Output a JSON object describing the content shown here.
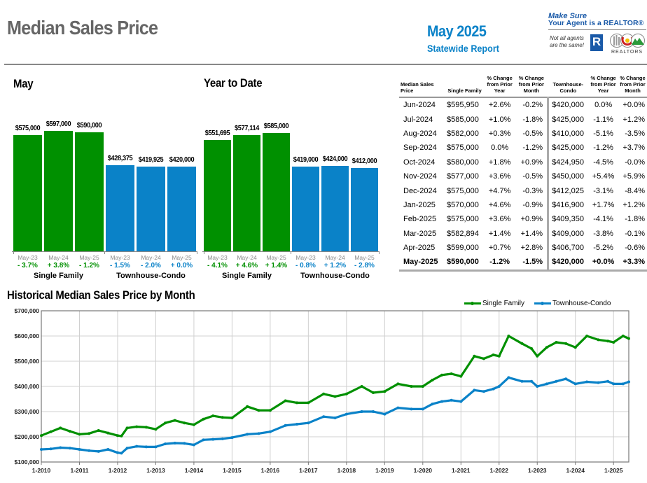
{
  "header": {
    "title": "Median Sales Price",
    "report_date": "May 2025",
    "report_subtitle": "Statewide Report",
    "logo": {
      "line1": "Make Sure",
      "line2": "Your Agent is a REALTOR®",
      "tagline_1": "Not all agents",
      "tagline_2": "are the same!",
      "realtor_mark": "R",
      "association": "REALTORS"
    }
  },
  "colors": {
    "single_family": "#009000",
    "townhouse_condo": "#0a82c8",
    "title_gray": "#666666",
    "accent_blue": "#0a82c8",
    "grid": "#d0d0d0"
  },
  "chart_data": [
    {
      "type": "bar",
      "title": "May",
      "groups": [
        "Single Family",
        "Townhouse-Condo"
      ],
      "categories": [
        "May-23",
        "May-24",
        "May-25"
      ],
      "series": [
        {
          "name": "Single Family",
          "values": [
            575000,
            597000,
            590000
          ],
          "labels": [
            "$575,000",
            "$597,000",
            "$590,000"
          ],
          "pct_change": [
            "- 3.7%",
            "+ 3.8%",
            "- 1.2%"
          ]
        },
        {
          "name": "Townhouse-Condo",
          "values": [
            428375,
            419925,
            420000
          ],
          "labels": [
            "$428,375",
            "$419,925",
            "$420,000"
          ],
          "pct_change": [
            "- 1.5%",
            "- 2.0%",
            "+ 0.0%"
          ]
        }
      ],
      "ylim": [
        0,
        600000
      ]
    },
    {
      "type": "bar",
      "title": "Year to Date",
      "groups": [
        "Single Family",
        "Townhouse-Condo"
      ],
      "categories": [
        "May-23",
        "May-24",
        "May-25"
      ],
      "series": [
        {
          "name": "Single Family",
          "values": [
            551695,
            577114,
            585000
          ],
          "labels": [
            "$551,695",
            "$577,114",
            "$585,000"
          ],
          "pct_change": [
            "- 4.1%",
            "+ 4.6%",
            "+ 1.4%"
          ]
        },
        {
          "name": "Townhouse-Condo",
          "values": [
            419000,
            424000,
            412000
          ],
          "labels": [
            "$419,000",
            "$424,000",
            "$412,000"
          ],
          "pct_change": [
            "- 0.8%",
            "+ 1.2%",
            "- 2.8%"
          ]
        }
      ],
      "ylim": [
        0,
        600000
      ]
    },
    {
      "type": "table",
      "columns": [
        "Median Sales Price",
        "Single Family",
        "% Change from Prior Year",
        "% Change from Prior Month",
        "Townhouse-Condo",
        "% Change from Prior Year",
        "% Change from Prior Month"
      ],
      "rows": [
        [
          "Jun-2024",
          "$595,950",
          "+2.6%",
          "-0.2%",
          "$420,000",
          "0.0%",
          "+0.0%"
        ],
        [
          "Jul-2024",
          "$585,000",
          "+1.0%",
          "-1.8%",
          "$425,000",
          "-1.1%",
          "+1.2%"
        ],
        [
          "Aug-2024",
          "$582,000",
          "+0.3%",
          "-0.5%",
          "$410,000",
          "-5.1%",
          "-3.5%"
        ],
        [
          "Sep-2024",
          "$575,000",
          "0.0%",
          "-1.2%",
          "$425,000",
          "-1.2%",
          "+3.7%"
        ],
        [
          "Oct-2024",
          "$580,000",
          "+1.8%",
          "+0.9%",
          "$424,950",
          "-4.5%",
          "-0.0%"
        ],
        [
          "Nov-2024",
          "$577,000",
          "+3.6%",
          "-0.5%",
          "$450,000",
          "+5.4%",
          "+5.9%"
        ],
        [
          "Dec-2024",
          "$575,000",
          "+4.7%",
          "-0.3%",
          "$412,025",
          "-3.1%",
          "-8.4%"
        ],
        [
          "Jan-2025",
          "$570,000",
          "+4.6%",
          "-0.9%",
          "$416,900",
          "+1.7%",
          "+1.2%"
        ],
        [
          "Feb-2025",
          "$575,000",
          "+3.6%",
          "+0.9%",
          "$409,350",
          "-4.1%",
          "-1.8%"
        ],
        [
          "Mar-2025",
          "$582,894",
          "+1.4%",
          "+1.4%",
          "$409,000",
          "-3.8%",
          "-0.1%"
        ],
        [
          "Apr-2025",
          "$599,000",
          "+0.7%",
          "+2.8%",
          "$406,700",
          "-5.2%",
          "-0.6%"
        ],
        [
          "May-2025",
          "$590,000",
          "-1.2%",
          "-1.5%",
          "$420,000",
          "+0.0%",
          "+3.3%"
        ]
      ],
      "bold_last_row": true
    },
    {
      "type": "line",
      "title": "Historical Median Sales Price by Month",
      "legend": [
        "Single Family",
        "Townhouse-Condo"
      ],
      "legend_position": "top-right",
      "xlabel": "",
      "ylabel": "",
      "x_ticks": [
        "1-2010",
        "1-2011",
        "1-2012",
        "1-2013",
        "1-2014",
        "1-2015",
        "1-2016",
        "1-2017",
        "1-2018",
        "1-2019",
        "1-2020",
        "1-2021",
        "1-2022",
        "1-2023",
        "1-2024",
        "1-2025"
      ],
      "y_ticks": [
        "$100,000",
        "$200,000",
        "$300,000",
        "$400,000",
        "$500,000",
        "$600,000",
        "$700,000"
      ],
      "ylim": [
        100000,
        700000
      ],
      "xlim": [
        2010.0,
        2025.4
      ],
      "grid": true,
      "series": [
        {
          "name": "Single Family",
          "x": [
            2010.0,
            2010.25,
            2010.5,
            2010.75,
            2011.0,
            2011.25,
            2011.5,
            2011.75,
            2012.0,
            2012.1,
            2012.25,
            2012.5,
            2012.75,
            2013.0,
            2013.25,
            2013.5,
            2013.75,
            2014.0,
            2014.25,
            2014.5,
            2014.75,
            2015.0,
            2015.4,
            2015.7,
            2016.0,
            2016.4,
            2016.7,
            2017.0,
            2017.4,
            2017.7,
            2018.0,
            2018.4,
            2018.7,
            2019.0,
            2019.35,
            2019.7,
            2020.0,
            2020.25,
            2020.5,
            2020.75,
            2021.0,
            2021.35,
            2021.6,
            2021.85,
            2022.0,
            2022.25,
            2022.6,
            2022.85,
            2023.0,
            2023.25,
            2023.5,
            2023.75,
            2024.0,
            2024.3,
            2024.6,
            2024.85,
            2025.0,
            2025.25,
            2025.4
          ],
          "y": [
            205000,
            220000,
            235000,
            222000,
            210000,
            213000,
            225000,
            215000,
            205000,
            203000,
            235000,
            240000,
            238000,
            230000,
            255000,
            265000,
            255000,
            248000,
            270000,
            283000,
            277000,
            275000,
            320000,
            305000,
            305000,
            343000,
            335000,
            335000,
            370000,
            360000,
            370000,
            400000,
            375000,
            380000,
            410000,
            400000,
            400000,
            425000,
            445000,
            450000,
            440000,
            520000,
            510000,
            525000,
            520000,
            600000,
            570000,
            550000,
            520000,
            555000,
            575000,
            570000,
            555000,
            600000,
            585000,
            580000,
            575000,
            600000,
            590000
          ]
        },
        {
          "name": "Townhouse-Condo",
          "x": [
            2010.0,
            2010.25,
            2010.5,
            2010.75,
            2011.0,
            2011.25,
            2011.5,
            2011.75,
            2012.0,
            2012.1,
            2012.25,
            2012.5,
            2012.75,
            2013.0,
            2013.25,
            2013.5,
            2013.75,
            2014.0,
            2014.25,
            2014.5,
            2014.75,
            2015.0,
            2015.4,
            2015.7,
            2016.0,
            2016.4,
            2016.7,
            2017.0,
            2017.4,
            2017.7,
            2018.0,
            2018.4,
            2018.7,
            2019.0,
            2019.35,
            2019.7,
            2020.0,
            2020.25,
            2020.5,
            2020.75,
            2021.0,
            2021.35,
            2021.6,
            2021.85,
            2022.0,
            2022.25,
            2022.6,
            2022.85,
            2023.0,
            2023.25,
            2023.5,
            2023.75,
            2024.0,
            2024.3,
            2024.6,
            2024.85,
            2025.0,
            2025.25,
            2025.4
          ],
          "y": [
            150000,
            152000,
            157000,
            155000,
            150000,
            145000,
            142000,
            150000,
            137000,
            135000,
            155000,
            162000,
            160000,
            160000,
            172000,
            175000,
            174000,
            168000,
            188000,
            190000,
            192000,
            197000,
            210000,
            213000,
            220000,
            245000,
            250000,
            255000,
            280000,
            275000,
            290000,
            300000,
            300000,
            290000,
            315000,
            310000,
            310000,
            330000,
            340000,
            345000,
            340000,
            385000,
            380000,
            390000,
            400000,
            435000,
            420000,
            420000,
            400000,
            410000,
            420000,
            430000,
            410000,
            418000,
            415000,
            420000,
            410000,
            410000,
            418000
          ]
        }
      ]
    }
  ]
}
